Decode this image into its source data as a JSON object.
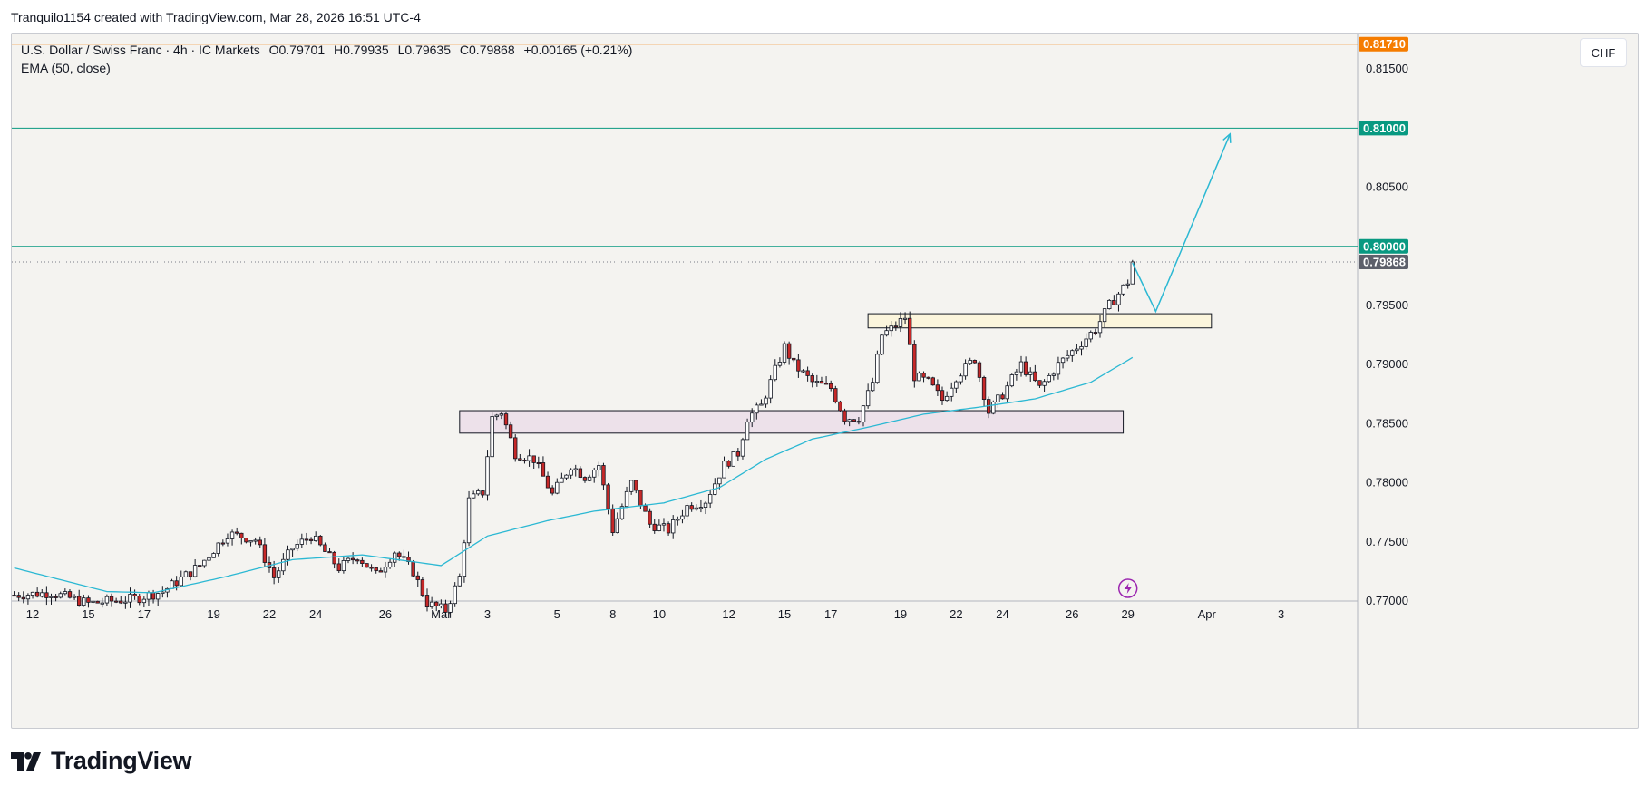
{
  "attribution": "Tranquilo1154 created with TradingView.com, Mar 28, 2026 16:51 UTC-4",
  "legend": {
    "symbol": "U.S. Dollar / Swiss Franc · 4h · IC Markets",
    "open": "O0.79701",
    "high": "H0.79935",
    "low": "L0.79635",
    "close": "C0.79868",
    "change": "+0.00165 (+0.21%)",
    "indicator": "EMA (50, close)"
  },
  "currency_button": "CHF",
  "brand": {
    "name": "TradingView"
  },
  "colors": {
    "up_body": "#ffffff",
    "down_body": "#c62828",
    "wick": "#131722",
    "ema": "#2bb8d3",
    "level_teal": "#089981",
    "level_orange": "#f57c00",
    "last_price_tag": "#5d606b",
    "zone_yellow": "#fbf5dc",
    "zone_purple": "#ede1ea",
    "projection": "#2bb8d3",
    "lightning": "#9c27b0"
  },
  "chart_data": {
    "type": "candlestick",
    "timeframe": "4h",
    "symbol": "USDCHF",
    "ylim": [
      0.77,
      0.818
    ],
    "y_ticks": [
      "0.81500",
      "0.81000",
      "0.80500",
      "0.80000",
      "0.79500",
      "0.79000",
      "0.78500",
      "0.78000",
      "0.77500",
      "0.77000"
    ],
    "x_ticks": [
      {
        "label": "12",
        "bar": 4
      },
      {
        "label": "15",
        "bar": 16
      },
      {
        "label": "17",
        "bar": 28
      },
      {
        "label": "19",
        "bar": 43
      },
      {
        "label": "22",
        "bar": 55
      },
      {
        "label": "24",
        "bar": 65
      },
      {
        "label": "26",
        "bar": 80
      },
      {
        "label": "Mar",
        "bar": 92
      },
      {
        "label": "3",
        "bar": 102
      },
      {
        "label": "5",
        "bar": 117
      },
      {
        "label": "8",
        "bar": 129
      },
      {
        "label": "10",
        "bar": 139
      },
      {
        "label": "12",
        "bar": 154
      },
      {
        "label": "15",
        "bar": 166
      },
      {
        "label": "17",
        "bar": 176
      },
      {
        "label": "19",
        "bar": 191
      },
      {
        "label": "22",
        "bar": 203
      },
      {
        "label": "24",
        "bar": 213
      },
      {
        "label": "26",
        "bar": 228
      },
      {
        "label": "29",
        "bar": 240
      },
      {
        "label": "Apr",
        "bar": 257
      },
      {
        "label": "3",
        "bar": 273
      }
    ],
    "bars_total": 290,
    "horizontal_levels": [
      {
        "price": 0.8171,
        "label": "0.81710",
        "color": "#f57c00"
      },
      {
        "price": 0.81,
        "label": "0.81000",
        "color": "#089981"
      },
      {
        "price": 0.8,
        "label": "0.80000",
        "color": "#089981"
      }
    ],
    "last_price": {
      "price": 0.79868,
      "label": "0.79868"
    },
    "zones": [
      {
        "from_bar": 96,
        "to_bar": 239,
        "low": 0.7842,
        "high": 0.7861,
        "color": "#ede1ea"
      },
      {
        "from_bar": 184,
        "to_bar": 258,
        "low": 0.7931,
        "high": 0.7943,
        "color": "#fbf5dc"
      }
    ],
    "projection_path": [
      {
        "bar": 241,
        "price": 0.7986
      },
      {
        "bar": 246,
        "price": 0.7945
      },
      {
        "bar": 262,
        "price": 0.8095
      }
    ],
    "ema_anchors": [
      {
        "bar": 0,
        "price": 0.7728
      },
      {
        "bar": 20,
        "price": 0.7708
      },
      {
        "bar": 30,
        "price": 0.7707
      },
      {
        "bar": 45,
        "price": 0.772
      },
      {
        "bar": 60,
        "price": 0.7735
      },
      {
        "bar": 75,
        "price": 0.7739
      },
      {
        "bar": 92,
        "price": 0.773
      },
      {
        "bar": 102,
        "price": 0.7755
      },
      {
        "bar": 115,
        "price": 0.7768
      },
      {
        "bar": 125,
        "price": 0.7776
      },
      {
        "bar": 140,
        "price": 0.7783
      },
      {
        "bar": 152,
        "price": 0.7796
      },
      {
        "bar": 162,
        "price": 0.782
      },
      {
        "bar": 172,
        "price": 0.7837
      },
      {
        "bar": 184,
        "price": 0.7847
      },
      {
        "bar": 196,
        "price": 0.7858
      },
      {
        "bar": 208,
        "price": 0.7864
      },
      {
        "bar": 220,
        "price": 0.7871
      },
      {
        "bar": 232,
        "price": 0.7885
      },
      {
        "bar": 241,
        "price": 0.7906
      }
    ],
    "close_anchors": [
      {
        "bar": 0,
        "price": 0.7705
      },
      {
        "bar": 8,
        "price": 0.7707
      },
      {
        "bar": 16,
        "price": 0.7698
      },
      {
        "bar": 26,
        "price": 0.7702
      },
      {
        "bar": 32,
        "price": 0.7708
      },
      {
        "bar": 40,
        "price": 0.773
      },
      {
        "bar": 46,
        "price": 0.7757
      },
      {
        "bar": 52,
        "price": 0.7752
      },
      {
        "bar": 56,
        "price": 0.772
      },
      {
        "bar": 60,
        "price": 0.7745
      },
      {
        "bar": 64,
        "price": 0.7755
      },
      {
        "bar": 70,
        "price": 0.7728
      },
      {
        "bar": 74,
        "price": 0.7738
      },
      {
        "bar": 78,
        "price": 0.7722
      },
      {
        "bar": 82,
        "price": 0.7742
      },
      {
        "bar": 86,
        "price": 0.7725
      },
      {
        "bar": 89,
        "price": 0.7698
      },
      {
        "bar": 93,
        "price": 0.7692
      },
      {
        "bar": 96,
        "price": 0.772
      },
      {
        "bar": 98,
        "price": 0.7785
      },
      {
        "bar": 101,
        "price": 0.7792
      },
      {
        "bar": 103,
        "price": 0.7855
      },
      {
        "bar": 105,
        "price": 0.786
      },
      {
        "bar": 108,
        "price": 0.7825
      },
      {
        "bar": 112,
        "price": 0.782
      },
      {
        "bar": 116,
        "price": 0.779
      },
      {
        "bar": 120,
        "price": 0.7815
      },
      {
        "bar": 123,
        "price": 0.7805
      },
      {
        "bar": 126,
        "price": 0.7815
      },
      {
        "bar": 129,
        "price": 0.776
      },
      {
        "bar": 133,
        "price": 0.78
      },
      {
        "bar": 137,
        "price": 0.7765
      },
      {
        "bar": 141,
        "price": 0.776
      },
      {
        "bar": 145,
        "price": 0.778
      },
      {
        "bar": 149,
        "price": 0.7785
      },
      {
        "bar": 153,
        "price": 0.7815
      },
      {
        "bar": 156,
        "price": 0.7825
      },
      {
        "bar": 158,
        "price": 0.7855
      },
      {
        "bar": 161,
        "price": 0.7865
      },
      {
        "bar": 164,
        "price": 0.7895
      },
      {
        "bar": 166,
        "price": 0.7915
      },
      {
        "bar": 168,
        "price": 0.79
      },
      {
        "bar": 172,
        "price": 0.7885
      },
      {
        "bar": 176,
        "price": 0.788
      },
      {
        "bar": 179,
        "price": 0.7855
      },
      {
        "bar": 182,
        "price": 0.7855
      },
      {
        "bar": 185,
        "price": 0.7885
      },
      {
        "bar": 187,
        "price": 0.7925
      },
      {
        "bar": 189,
        "price": 0.793
      },
      {
        "bar": 192,
        "price": 0.794
      },
      {
        "bar": 194,
        "price": 0.789
      },
      {
        "bar": 197,
        "price": 0.7885
      },
      {
        "bar": 200,
        "price": 0.787
      },
      {
        "bar": 203,
        "price": 0.789
      },
      {
        "bar": 207,
        "price": 0.7905
      },
      {
        "bar": 210,
        "price": 0.786
      },
      {
        "bar": 213,
        "price": 0.7875
      },
      {
        "bar": 217,
        "price": 0.79
      },
      {
        "bar": 221,
        "price": 0.788
      },
      {
        "bar": 225,
        "price": 0.79
      },
      {
        "bar": 229,
        "price": 0.7915
      },
      {
        "bar": 233,
        "price": 0.793
      },
      {
        "bar": 236,
        "price": 0.795
      },
      {
        "bar": 238,
        "price": 0.796
      },
      {
        "bar": 240,
        "price": 0.79701
      },
      {
        "bar": 241,
        "price": 0.79868
      }
    ]
  }
}
